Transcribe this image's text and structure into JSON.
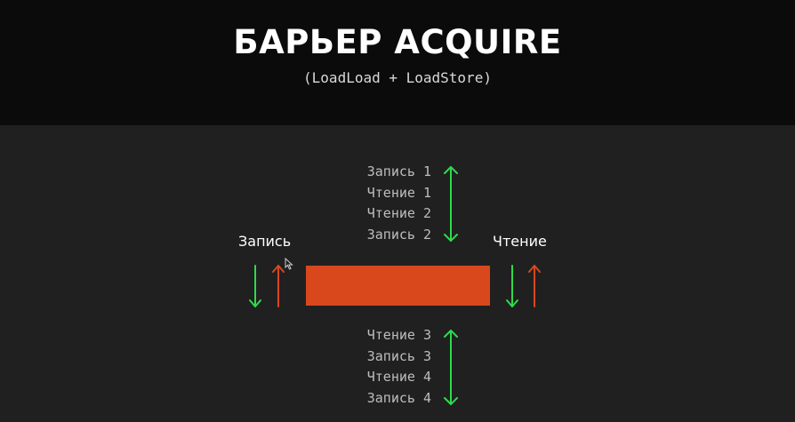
{
  "header": {
    "title": "БАРЬЕР ACQUIRE",
    "subtitle": "(LoadLoad + LoadStore)"
  },
  "diagram": {
    "left_label": "Запись",
    "right_label": "Чтение",
    "ops_above": [
      "Запись 1",
      "Чтение 1",
      "Чтение 2",
      "Запись 2"
    ],
    "ops_below": [
      "Чтение 3",
      "Запись 3",
      "Чтение 4",
      "Запись 4"
    ],
    "colors": {
      "barrier": "#d9471d",
      "allowed_arrow": "#2edb4a",
      "blocked_arrow": "#d9471d"
    },
    "icons": [
      "double-arrow-icon",
      "down-arrow-icon",
      "up-arrow-icon",
      "mouse-cursor-icon"
    ]
  }
}
